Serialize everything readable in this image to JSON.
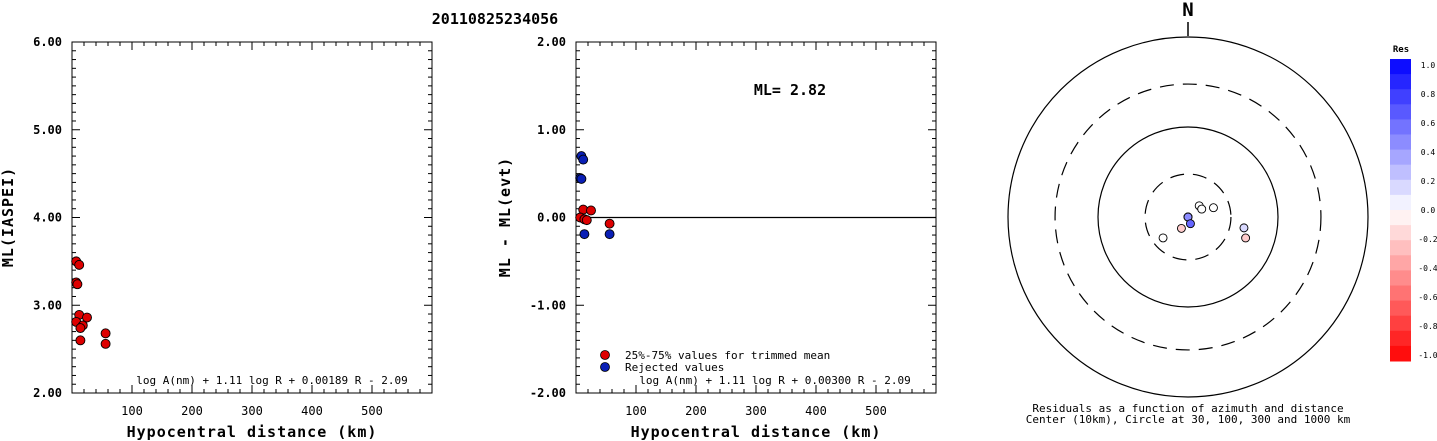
{
  "title": "20110825234056",
  "chart_data": [
    {
      "type": "scatter",
      "ylabel": "ML(IASPEI)",
      "xlabel": "Hypocentral distance (km)",
      "xlim": [
        0,
        600
      ],
      "ylim": [
        2.0,
        6.0
      ],
      "x_ticks": [
        "100",
        "200",
        "300",
        "400",
        "500"
      ],
      "y_ticks": [
        "2.00",
        "3.00",
        "4.00",
        "5.00",
        "6.00"
      ],
      "formula": "log A(nm) + 1.11 log R + 0.00189 R - 2.09",
      "points": [
        {
          "x": 7,
          "y": 3.5
        },
        {
          "x": 12,
          "y": 3.46
        },
        {
          "x": 7,
          "y": 3.26
        },
        {
          "x": 9,
          "y": 3.24
        },
        {
          "x": 12,
          "y": 2.89
        },
        {
          "x": 7,
          "y": 2.81
        },
        {
          "x": 25,
          "y": 2.86
        },
        {
          "x": 18,
          "y": 2.77
        },
        {
          "x": 14,
          "y": 2.74
        },
        {
          "x": 56,
          "y": 2.68
        },
        {
          "x": 14,
          "y": 2.6
        },
        {
          "x": 56,
          "y": 2.56
        }
      ],
      "point_color": "#dd0000"
    },
    {
      "type": "scatter",
      "ylabel": "ML - ML(evt)",
      "xlabel": "Hypocentral distance (km)",
      "xlim": [
        0,
        600
      ],
      "ylim": [
        -2.0,
        2.0
      ],
      "x_ticks": [
        "100",
        "200",
        "300",
        "400",
        "500"
      ],
      "y_ticks": [
        "-2.00",
        "-1.00",
        "0.00",
        "1.00",
        "2.00"
      ],
      "annotation": "ML= 2.82",
      "formula": "log A(nm) + 1.11 log R + 0.00300 R - 2.09",
      "legend": [
        {
          "label": "25%-75% values for trimmed mean",
          "color": "#dd0000"
        },
        {
          "label": "Rejected values",
          "color": "#0a1fb5"
        }
      ],
      "points_trimmed": [
        {
          "x": 12,
          "y": 0.09
        },
        {
          "x": 25,
          "y": 0.08
        },
        {
          "x": 7,
          "y": 0.0
        },
        {
          "x": 14,
          "y": -0.02
        },
        {
          "x": 18,
          "y": -0.03
        },
        {
          "x": 56,
          "y": -0.07
        }
      ],
      "points_rejected": [
        {
          "x": 9,
          "y": 0.7
        },
        {
          "x": 12,
          "y": 0.66
        },
        {
          "x": 7,
          "y": 0.45
        },
        {
          "x": 9,
          "y": 0.44
        },
        {
          "x": 14,
          "y": -0.19
        },
        {
          "x": 56,
          "y": -0.19
        }
      ]
    },
    {
      "type": "polar-scatter",
      "north_label": "N",
      "caption_line1": "Residuals as a function of azimuth and distance",
      "caption_line2": "Center (10km), Circle at 30, 100, 300 and 1000 km",
      "rings": [
        {
          "km": 30,
          "style": "dashed"
        },
        {
          "km": 100,
          "style": "solid"
        },
        {
          "km": 300,
          "style": "dashed"
        },
        {
          "km": 1000,
          "style": "solid"
        }
      ],
      "stations": [
        {
          "azimuth": 101,
          "distance_km": 43,
          "res": 0.15
        },
        {
          "azimuth": 110,
          "distance_km": 48,
          "res": -0.2
        },
        {
          "azimuth": 45,
          "distance_km": 15,
          "res": 0.0
        },
        {
          "azimuth": 60,
          "distance_km": 15,
          "res": 0.0
        },
        {
          "azimuth": 70,
          "distance_km": 20,
          "res": 0.0
        },
        {
          "azimuth": 160,
          "distance_km": 4,
          "res": 0.65
        },
        {
          "azimuth": 180,
          "distance_km": 4,
          "res": 0.5
        },
        {
          "azimuth": 220,
          "distance_km": 7,
          "res": 0.45
        },
        {
          "azimuth": 160,
          "distance_km": 12,
          "res": 0.6
        },
        {
          "azimuth": 210,
          "distance_km": 14,
          "res": -0.2
        },
        {
          "azimuth": 230,
          "distance_km": 23,
          "res": 0.0
        }
      ],
      "colorbar": {
        "title": "Res",
        "ticks": [
          "1.0",
          "0.8",
          "0.6",
          "0.4",
          "0.2",
          "0.0",
          "-0.2",
          "-0.4",
          "-0.6",
          "-0.8",
          "-1.0"
        ],
        "positive_color": "#0000ff",
        "negative_color": "#ff0000"
      }
    }
  ]
}
